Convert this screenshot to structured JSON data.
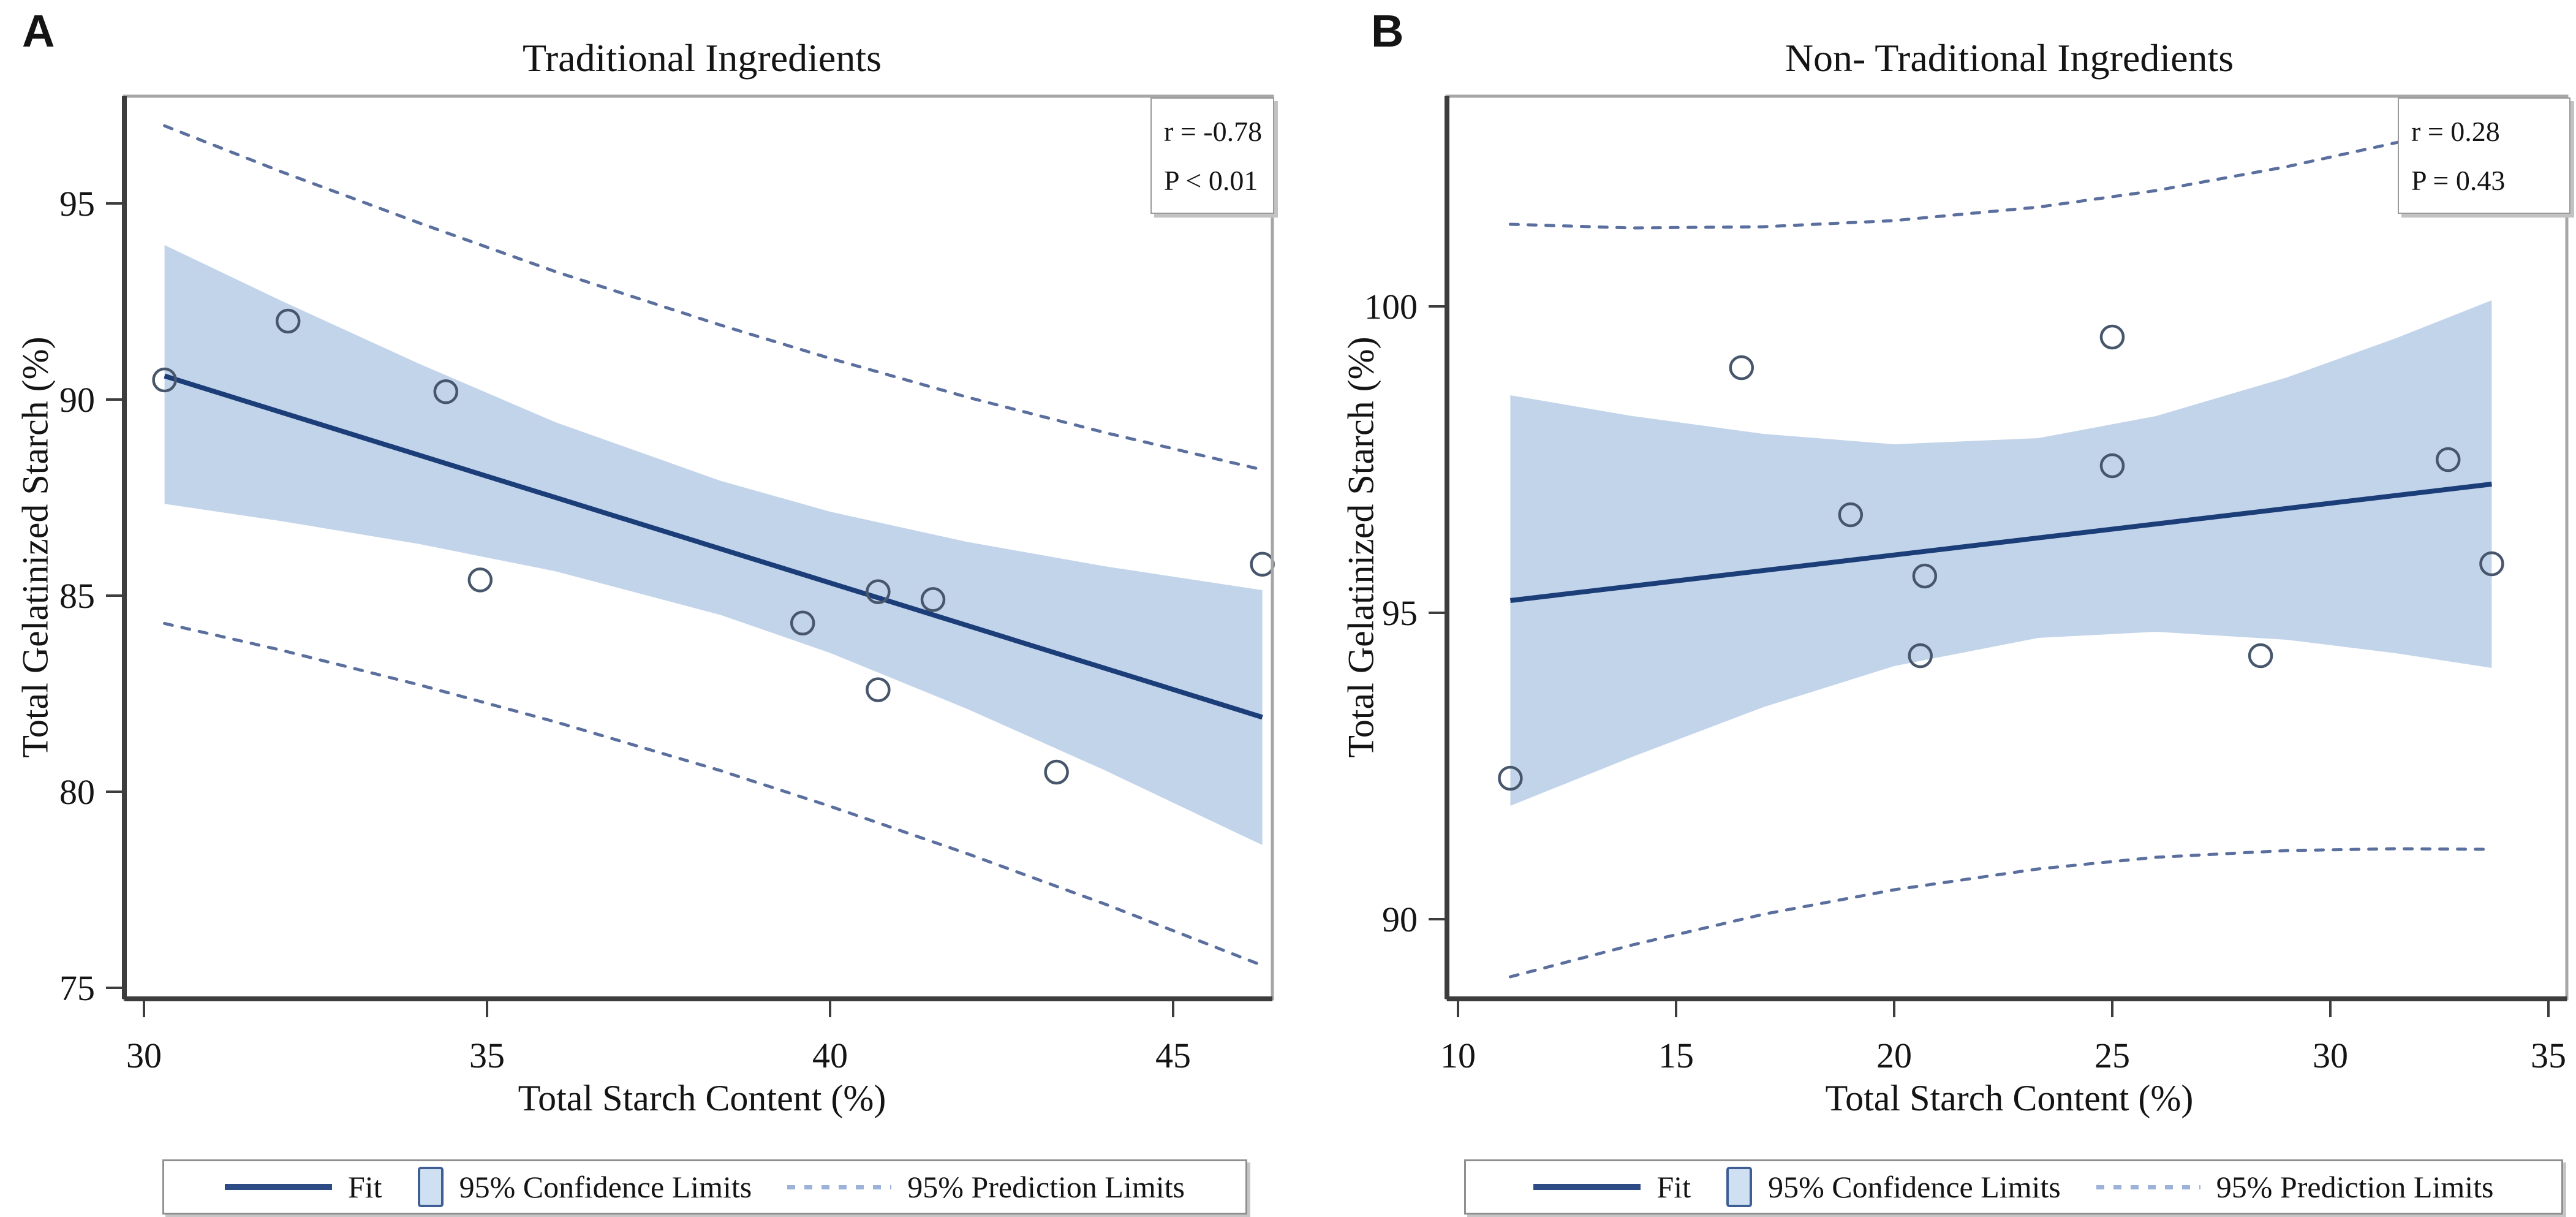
{
  "legend_labels": {
    "fit": "Fit",
    "confidence": "95% Confidence Limits",
    "prediction": "95% Prediction Limits"
  },
  "colors": {
    "fit_line": "#1b3d78",
    "confidence_band": "#c2d4ea",
    "prediction_line": "#5b6f9e",
    "legend_prediction_swatch": "#9db2d8",
    "marker_stroke": "#47566b",
    "frame_gray": "#a6a6a6",
    "axis_dark": "#3d3d3d",
    "text": "#141414"
  },
  "chart_data": [
    {
      "type": "scatter",
      "panel_letter": "A",
      "title": "Traditional Ingredients",
      "annotation": [
        "r = -0.78",
        "P < 0.01"
      ],
      "xlabel": "Total Starch Content (%)",
      "ylabel": "Total Gelatinized Starch (%)",
      "xlim": [
        29.7,
        46.45
      ],
      "ylim": [
        74.7,
        97.75
      ],
      "xticks": [
        30,
        35,
        40,
        45
      ],
      "yticks": [
        75,
        80,
        85,
        90,
        95
      ],
      "grid": false,
      "legend_position": "bottom",
      "points": [
        [
          30.3,
          90.5
        ],
        [
          32.1,
          92.0
        ],
        [
          34.4,
          90.2
        ],
        [
          34.9,
          85.4
        ],
        [
          39.6,
          84.3
        ],
        [
          40.7,
          85.1
        ],
        [
          40.7,
          82.6
        ],
        [
          41.5,
          84.9
        ],
        [
          43.3,
          80.5
        ],
        [
          46.3,
          85.8
        ]
      ],
      "fit_line": [
        [
          30.3,
          90.6
        ],
        [
          46.3,
          81.9
        ]
      ],
      "confidence_band": [
        [
          30.3,
          87.34,
          93.94
        ],
        [
          32,
          86.9,
          92.52
        ],
        [
          34,
          86.32,
          90.92
        ],
        [
          36,
          85.62,
          89.42
        ],
        [
          38.4,
          84.51,
          87.93
        ],
        [
          40,
          83.54,
          87.14
        ],
        [
          42,
          82.11,
          86.37
        ],
        [
          44,
          80.55,
          85.75
        ],
        [
          46.3,
          78.64,
          85.14
        ]
      ],
      "prediction_limits": [
        [
          30.3,
          84.29,
          96.98
        ],
        [
          32,
          83.61,
          95.81
        ],
        [
          34,
          82.73,
          94.51
        ],
        [
          36,
          81.78,
          93.26
        ],
        [
          38.4,
          80.54,
          91.9
        ],
        [
          40,
          79.63,
          91.05
        ],
        [
          42,
          78.42,
          90.06
        ],
        [
          44,
          77.14,
          89.16
        ],
        [
          46.3,
          75.57,
          88.21
        ]
      ]
    },
    {
      "type": "scatter",
      "panel_letter": "B",
      "title": "Non- Traditional Ingredients",
      "annotation": [
        "r = 0.28",
        "P = 0.43"
      ],
      "xlabel": "Total Starch Content (%)",
      "ylabel": "Total Gelatinized Starch (%)",
      "xlim": [
        9.75,
        35.4
      ],
      "ylim": [
        88.7,
        103.4
      ],
      "xticks": [
        10,
        15,
        20,
        25,
        30,
        35
      ],
      "yticks": [
        90,
        95,
        100
      ],
      "grid": false,
      "legend_position": "bottom",
      "points": [
        [
          11.2,
          92.3
        ],
        [
          16.5,
          99.0
        ],
        [
          19.0,
          96.6
        ],
        [
          20.7,
          95.6
        ],
        [
          20.6,
          94.3
        ],
        [
          25.0,
          99.5
        ],
        [
          25.0,
          97.4
        ],
        [
          28.4,
          94.3
        ],
        [
          32.7,
          97.5
        ],
        [
          33.7,
          95.8
        ]
      ],
      "fit_line": [
        [
          11.2,
          95.2
        ],
        [
          33.7,
          97.1
        ]
      ],
      "confidence_band": [
        [
          11.2,
          91.85,
          98.55
        ],
        [
          14,
          92.65,
          98.21
        ],
        [
          17,
          93.46,
          97.92
        ],
        [
          20,
          94.13,
          97.75
        ],
        [
          23.3,
          94.59,
          97.85
        ],
        [
          26,
          94.69,
          98.21
        ],
        [
          29,
          94.56,
          98.84
        ],
        [
          31.5,
          94.34,
          99.48
        ],
        [
          33.7,
          94.1,
          100.1
        ]
      ],
      "prediction_limits": [
        [
          11.2,
          89.06,
          101.34
        ],
        [
          14,
          89.58,
          101.28
        ],
        [
          17,
          90.08,
          101.3
        ],
        [
          20,
          90.48,
          101.4
        ],
        [
          23.3,
          90.82,
          101.62
        ],
        [
          26,
          91.01,
          101.89
        ],
        [
          29,
          91.12,
          102.28
        ],
        [
          31.5,
          91.15,
          102.67
        ],
        [
          33.7,
          91.14,
          103.06
        ]
      ]
    }
  ]
}
